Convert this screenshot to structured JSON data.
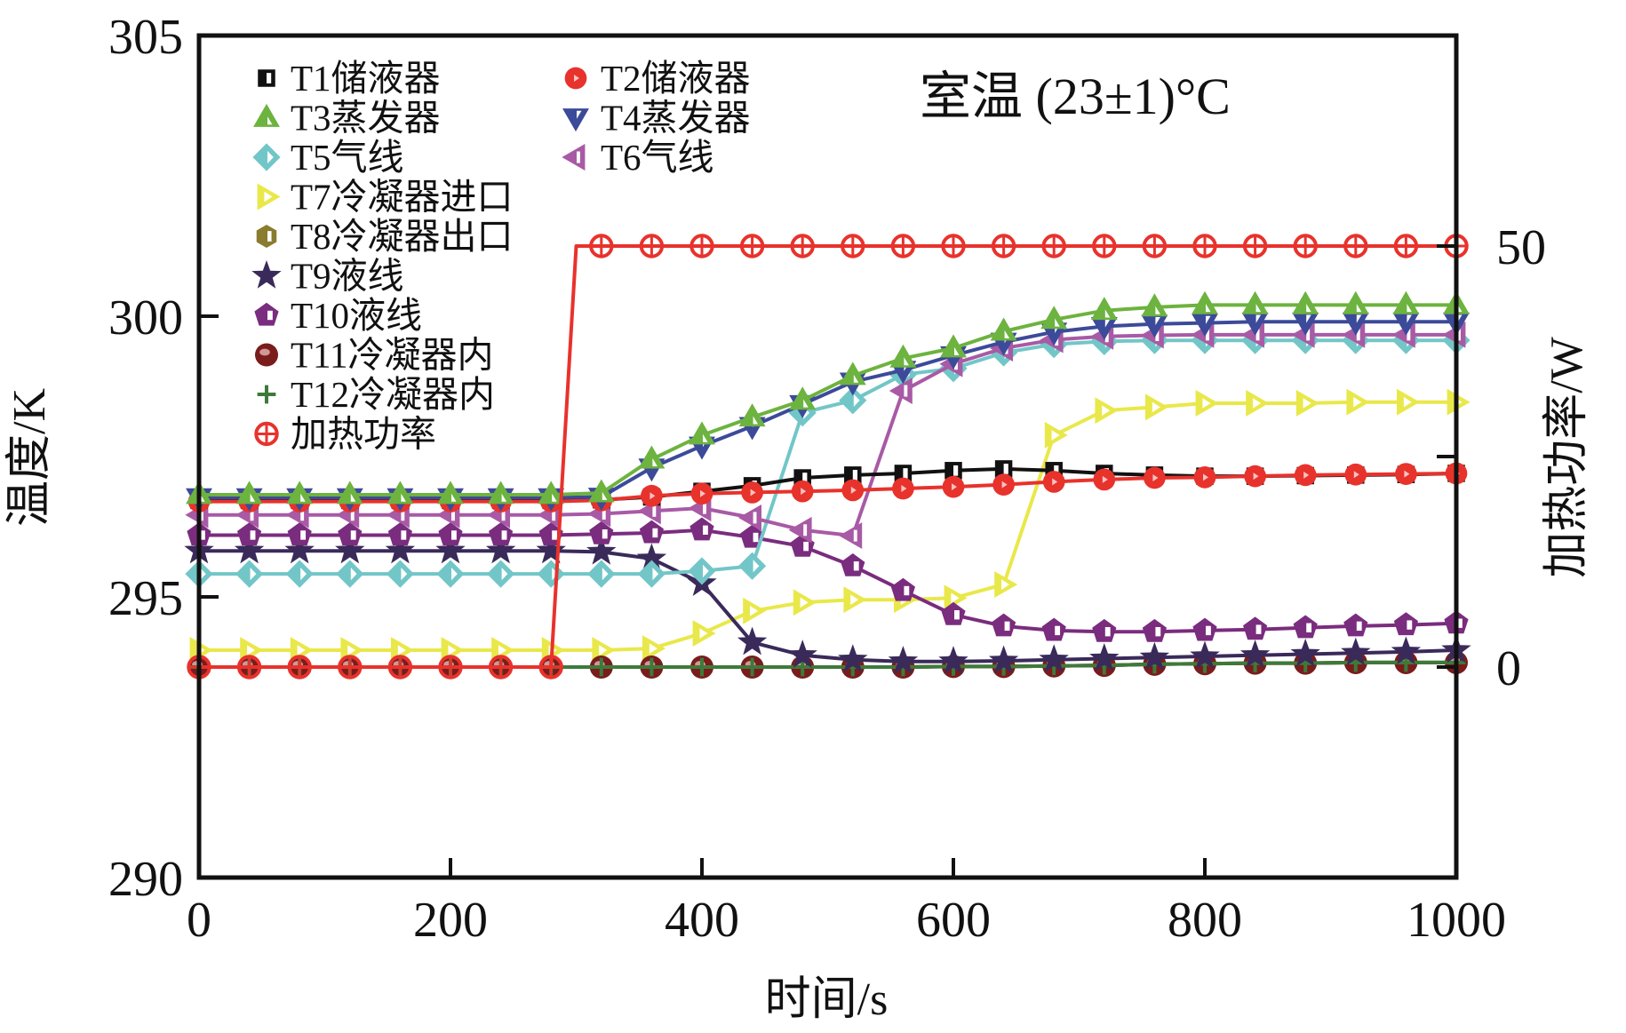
{
  "chart_data": {
    "type": "line",
    "title": "",
    "annotation": "室温 (23±1)°C",
    "xlabel": "时间/s",
    "ylabel": "温度/K",
    "y2label": "加热功率/W",
    "xlim": [
      0,
      1000
    ],
    "ylim": [
      290,
      305
    ],
    "y2lim": [
      -25,
      75
    ],
    "xticks": [
      0,
      200,
      400,
      600,
      800,
      1000
    ],
    "yticks": [
      290,
      295,
      300,
      305
    ],
    "y2ticks": [
      0,
      50
    ],
    "y2ticks_minor": [
      25
    ],
    "grid": false,
    "legend_position": "top-left",
    "x": [
      0,
      40,
      80,
      120,
      160,
      200,
      240,
      280,
      320,
      360,
      400,
      440,
      480,
      520,
      560,
      600,
      640,
      680,
      720,
      760,
      800,
      840,
      880,
      920,
      960,
      1000
    ],
    "series": [
      {
        "name": "T1储液器",
        "axis": "left",
        "marker": "square-half",
        "color": "#111111",
        "values": [
          296.72,
          296.72,
          296.72,
          296.72,
          296.72,
          296.72,
          296.72,
          296.72,
          296.73,
          296.78,
          296.88,
          296.98,
          297.12,
          297.17,
          297.2,
          297.25,
          297.28,
          297.25,
          297.2,
          297.17,
          297.15,
          297.15,
          297.16,
          297.17,
          297.18,
          297.2
        ]
      },
      {
        "name": "T2储液器",
        "axis": "left",
        "marker": "circle",
        "color": "#e8322c",
        "values": [
          296.7,
          296.7,
          296.7,
          296.7,
          296.7,
          296.7,
          296.7,
          296.7,
          296.72,
          296.8,
          296.84,
          296.86,
          296.88,
          296.9,
          296.93,
          296.96,
          297.0,
          297.05,
          297.09,
          297.12,
          297.13,
          297.15,
          297.17,
          297.18,
          297.19,
          297.2
        ]
      },
      {
        "name": "T3蒸发器",
        "axis": "left",
        "marker": "triangle-up",
        "color": "#6db33f",
        "values": [
          296.82,
          296.82,
          296.82,
          296.82,
          296.82,
          296.82,
          296.82,
          296.82,
          296.85,
          297.45,
          297.88,
          298.2,
          298.5,
          298.94,
          299.25,
          299.43,
          299.73,
          299.94,
          300.1,
          300.16,
          300.2,
          300.2,
          300.2,
          300.2,
          300.2,
          300.2
        ]
      },
      {
        "name": "T4蒸发器",
        "axis": "left",
        "marker": "triangle-down",
        "color": "#3c4a9a",
        "values": [
          296.77,
          296.77,
          296.77,
          296.77,
          296.77,
          296.77,
          296.77,
          296.77,
          296.78,
          297.3,
          297.69,
          298.04,
          298.43,
          298.83,
          299.04,
          299.3,
          299.54,
          299.72,
          299.82,
          299.86,
          299.88,
          299.9,
          299.9,
          299.9,
          299.9,
          299.9
        ]
      },
      {
        "name": "T5气线",
        "axis": "left",
        "marker": "diamond",
        "color": "#72c6c8",
        "values": [
          295.41,
          295.41,
          295.41,
          295.41,
          295.41,
          295.41,
          295.41,
          295.41,
          295.41,
          295.41,
          295.46,
          295.55,
          298.28,
          298.5,
          298.96,
          299.07,
          299.35,
          299.5,
          299.55,
          299.57,
          299.57,
          299.57,
          299.57,
          299.57,
          299.57,
          299.57
        ]
      },
      {
        "name": "T6气线",
        "axis": "left",
        "marker": "triangle-left",
        "color": "#a85aa5",
        "values": [
          296.46,
          296.46,
          296.46,
          296.46,
          296.46,
          296.46,
          296.46,
          296.46,
          296.48,
          296.53,
          296.58,
          296.41,
          296.19,
          296.09,
          298.67,
          299.15,
          299.43,
          299.58,
          299.64,
          299.66,
          299.67,
          299.67,
          299.67,
          299.67,
          299.67,
          299.67
        ]
      },
      {
        "name": "T7冷凝器进口",
        "axis": "left",
        "marker": "triangle-right",
        "color": "#e9e84a",
        "values": [
          294.05,
          294.05,
          294.05,
          294.05,
          294.05,
          294.05,
          294.05,
          294.05,
          294.05,
          294.08,
          294.35,
          294.75,
          294.9,
          294.95,
          294.95,
          294.98,
          295.22,
          297.88,
          298.32,
          298.38,
          298.45,
          298.45,
          298.45,
          298.47,
          298.47,
          298.47
        ]
      },
      {
        "name": "T8冷凝器出口",
        "axis": "left",
        "marker": "hexagon",
        "color": "#8a7b2f",
        "values": [
          293.75,
          293.75,
          293.75,
          293.75,
          293.75,
          293.75,
          293.75,
          293.75,
          293.75,
          293.75,
          293.75,
          293.75,
          293.75,
          293.75,
          293.75,
          293.76,
          293.76,
          293.77,
          293.78,
          293.8,
          293.81,
          293.82,
          293.82,
          293.83,
          293.83,
          293.83
        ]
      },
      {
        "name": "T9液线",
        "axis": "left",
        "marker": "star",
        "color": "#3a2a5a",
        "values": [
          295.82,
          295.82,
          295.82,
          295.82,
          295.82,
          295.82,
          295.82,
          295.82,
          295.8,
          295.68,
          295.24,
          294.19,
          293.96,
          293.88,
          293.85,
          293.85,
          293.86,
          293.88,
          293.9,
          293.92,
          293.94,
          293.96,
          293.98,
          294.0,
          294.02,
          294.05
        ]
      },
      {
        "name": "T10液线",
        "axis": "left",
        "marker": "pentagon",
        "color": "#7a2c7e",
        "values": [
          296.1,
          296.1,
          296.1,
          296.1,
          296.1,
          296.1,
          296.1,
          296.1,
          296.12,
          296.14,
          296.19,
          296.06,
          295.9,
          295.55,
          295.11,
          294.68,
          294.48,
          294.4,
          294.38,
          294.38,
          294.4,
          294.42,
          294.45,
          294.48,
          294.5,
          294.53
        ]
      },
      {
        "name": "T11冷凝器内",
        "axis": "left",
        "marker": "sphere",
        "color": "#7a1c1c",
        "values": [
          293.75,
          293.75,
          293.75,
          293.75,
          293.75,
          293.75,
          293.75,
          293.75,
          293.75,
          293.75,
          293.75,
          293.75,
          293.75,
          293.75,
          293.75,
          293.76,
          293.76,
          293.77,
          293.78,
          293.8,
          293.81,
          293.82,
          293.82,
          293.83,
          293.83,
          293.83
        ]
      },
      {
        "name": "T12冷凝器内",
        "axis": "left",
        "marker": "plus",
        "color": "#3d7a3a",
        "values": [
          293.75,
          293.75,
          293.75,
          293.75,
          293.75,
          293.75,
          293.75,
          293.75,
          293.75,
          293.75,
          293.75,
          293.75,
          293.75,
          293.75,
          293.75,
          293.76,
          293.76,
          293.77,
          293.78,
          293.8,
          293.81,
          293.82,
          293.82,
          293.83,
          293.83,
          293.83
        ]
      },
      {
        "name": "加热功率",
        "axis": "right",
        "marker": "circle-cross",
        "color": "#e8322c",
        "x_line": [
          0,
          40,
          80,
          120,
          160,
          200,
          240,
          280,
          300,
          320,
          360,
          400,
          440,
          480,
          520,
          560,
          600,
          640,
          680,
          720,
          760,
          800,
          840,
          880,
          920,
          960,
          1000
        ],
        "values_line": [
          0,
          0,
          0,
          0,
          0,
          0,
          0,
          0,
          50,
          50,
          50,
          50,
          50,
          50,
          50,
          50,
          50,
          50,
          50,
          50,
          50,
          50,
          50,
          50,
          50,
          50,
          50
        ],
        "values": [
          0,
          0,
          0,
          0,
          0,
          0,
          0,
          0,
          50,
          50,
          50,
          50,
          50,
          50,
          50,
          50,
          50,
          50,
          50,
          50,
          50,
          50,
          50,
          50,
          50,
          50
        ]
      }
    ]
  }
}
